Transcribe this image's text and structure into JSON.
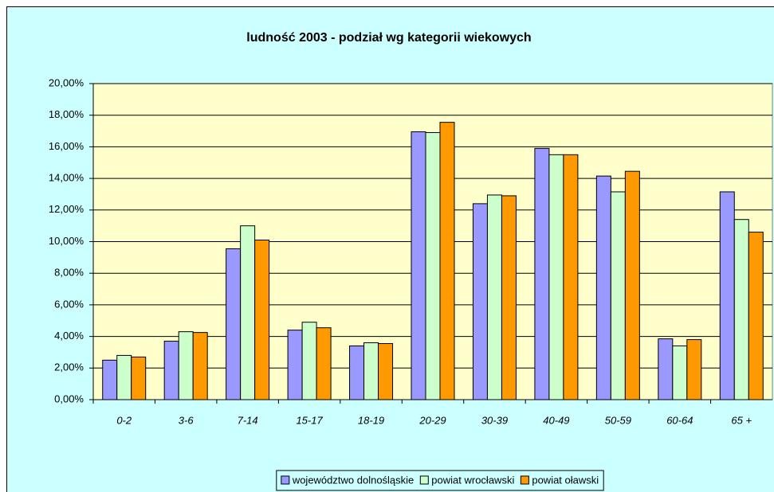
{
  "chart_data": {
    "type": "bar",
    "title": "ludność 2003 - podział wg kategorii wiekowych",
    "categories": [
      "0-2",
      "3-6",
      "7-14",
      "15-17",
      "18-19",
      "20-29",
      "30-39",
      "40-49",
      "50-59",
      "60-64",
      "65 +"
    ],
    "series": [
      {
        "name": "województwo dolnośląskie",
        "color": "#9999ff",
        "values": [
          2.5,
          3.7,
          9.55,
          4.4,
          3.4,
          16.95,
          12.4,
          15.9,
          14.15,
          3.85,
          13.15
        ]
      },
      {
        "name": "powiat wrocławski",
        "color": "#ccffcc",
        "values": [
          2.8,
          4.3,
          11.0,
          4.9,
          3.6,
          16.9,
          12.95,
          15.5,
          13.15,
          3.4,
          11.4
        ]
      },
      {
        "name": "powiat oławski",
        "color": "#ff9900",
        "values": [
          2.7,
          4.25,
          10.1,
          4.55,
          3.55,
          17.55,
          12.9,
          15.5,
          14.45,
          3.8,
          10.6
        ]
      }
    ],
    "ylim": [
      0,
      20
    ],
    "yticks": [
      {
        "value": 0,
        "label": "0,00%"
      },
      {
        "value": 2,
        "label": "2,00%"
      },
      {
        "value": 4,
        "label": "4,00%"
      },
      {
        "value": 6,
        "label": "6,00%"
      },
      {
        "value": 8,
        "label": "8,00%"
      },
      {
        "value": 10,
        "label": "10,00%"
      },
      {
        "value": 12,
        "label": "12,00%"
      },
      {
        "value": 14,
        "label": "14,00%"
      },
      {
        "value": 16,
        "label": "16,00%"
      },
      {
        "value": 18,
        "label": "18,00%"
      },
      {
        "value": 20,
        "label": "20,00%"
      }
    ],
    "grid": true,
    "legend": "bottom"
  }
}
